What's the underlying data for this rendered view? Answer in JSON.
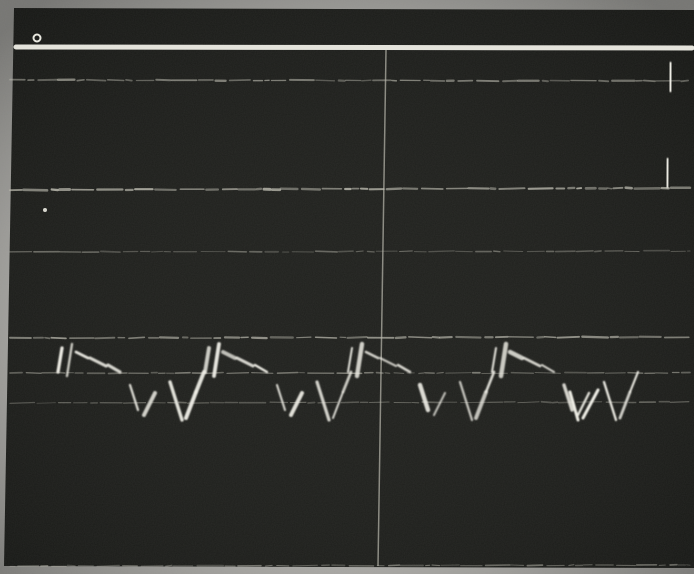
{
  "image": {
    "kind": "oscilloscope-photograph",
    "colors": {
      "paper": "#f4f2ee",
      "screen": "#1f201d",
      "trace": "#efeee6",
      "grid": "#b9b8ad"
    }
  }
}
